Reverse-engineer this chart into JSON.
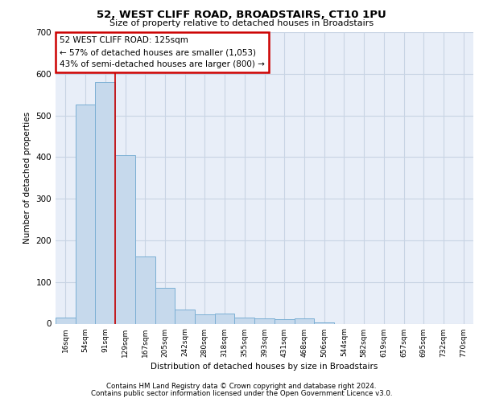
{
  "title1": "52, WEST CLIFF ROAD, BROADSTAIRS, CT10 1PU",
  "title2": "Size of property relative to detached houses in Broadstairs",
  "xlabel": "Distribution of detached houses by size in Broadstairs",
  "ylabel": "Number of detached properties",
  "bar_labels": [
    "16sqm",
    "54sqm",
    "91sqm",
    "129sqm",
    "167sqm",
    "205sqm",
    "242sqm",
    "280sqm",
    "318sqm",
    "355sqm",
    "393sqm",
    "431sqm",
    "468sqm",
    "506sqm",
    "544sqm",
    "582sqm",
    "619sqm",
    "657sqm",
    "695sqm",
    "732sqm",
    "770sqm"
  ],
  "bar_values": [
    14,
    526,
    581,
    405,
    162,
    85,
    33,
    23,
    25,
    14,
    13,
    10,
    12,
    2,
    0,
    0,
    0,
    0,
    0,
    0,
    0
  ],
  "bar_color": "#c6d9ec",
  "bar_edge_color": "#7bafd4",
  "grid_color": "#c8d4e4",
  "bg_color": "#e8eef8",
  "vline_x": 2.5,
  "vline_color": "#cc0000",
  "annotation_text": "52 WEST CLIFF ROAD: 125sqm\n← 57% of detached houses are smaller (1,053)\n43% of semi-detached houses are larger (800) →",
  "annotation_box_color": "#ffffff",
  "annotation_box_edge": "#cc0000",
  "footnote1": "Contains HM Land Registry data © Crown copyright and database right 2024.",
  "footnote2": "Contains public sector information licensed under the Open Government Licence v3.0.",
  "ylim": [
    0,
    700
  ],
  "yticks": [
    0,
    100,
    200,
    300,
    400,
    500,
    600,
    700
  ]
}
